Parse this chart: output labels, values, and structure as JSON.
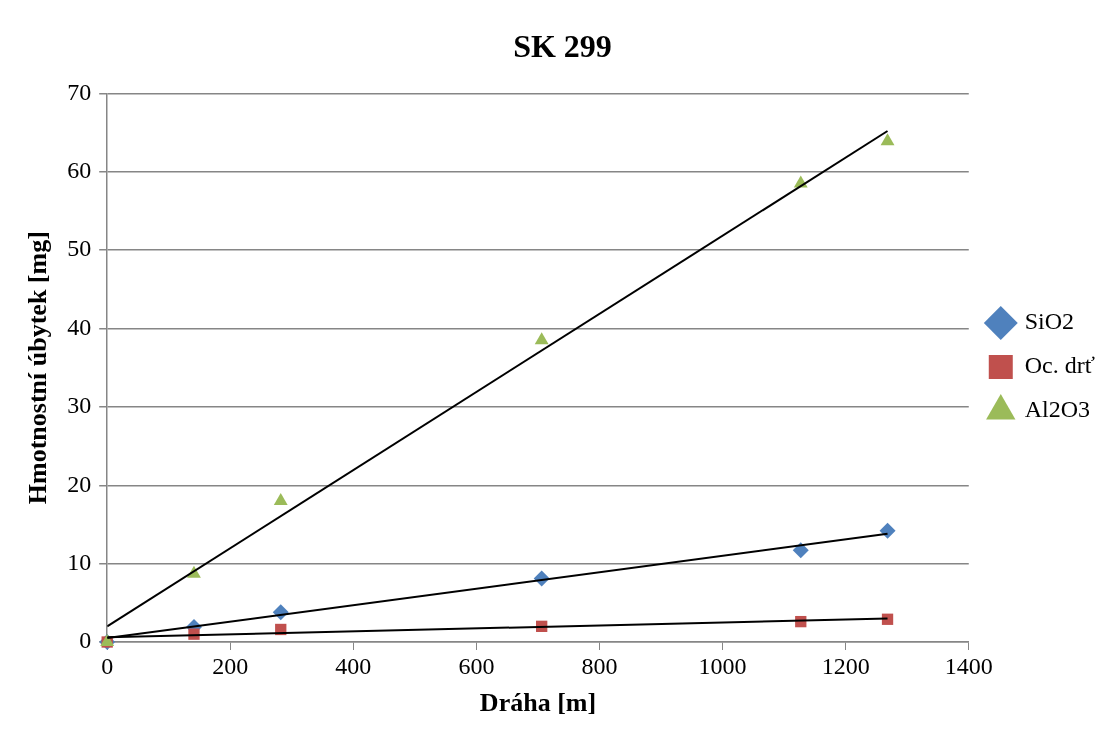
{
  "chart_data": {
    "type": "scatter",
    "title": "SK 299",
    "xlabel": "Dráha [m]",
    "ylabel": "Hmotnostní úbytek [mg]",
    "xlim": [
      0,
      1400
    ],
    "xticks": [
      0,
      200,
      400,
      600,
      800,
      1000,
      1200,
      1400
    ],
    "ylim": [
      0,
      70
    ],
    "yticks": [
      0,
      10,
      20,
      30,
      40,
      50,
      60,
      70
    ],
    "grid": "y",
    "legend": "right",
    "series": [
      {
        "name": "SiO2",
        "color": "#4f81bd",
        "marker": "diamond",
        "x": [
          0,
          141,
          282,
          706,
          1127,
          1268
        ],
        "values": [
          0,
          1.9,
          3.8,
          8.1,
          11.7,
          14.2
        ]
      },
      {
        "name": "Oc. drť",
        "color": "#c0504d",
        "marker": "square",
        "x": [
          0,
          141,
          282,
          706,
          1127,
          1268
        ],
        "values": [
          0,
          1.0,
          1.6,
          2.0,
          2.6,
          2.9
        ]
      },
      {
        "name": "Al2O3",
        "color": "#9bbb59",
        "marker": "triangle",
        "x": [
          0,
          141,
          282,
          706,
          1127,
          1268
        ],
        "values": [
          0,
          8.7,
          18.0,
          38.5,
          58.5,
          63.9
        ]
      },
      {
        "type": "line",
        "color": "#000000",
        "marker": "none",
        "x": [
          0,
          1268
        ],
        "values": [
          0.5,
          13.8
        ]
      },
      {
        "type": "line",
        "color": "#000000",
        "marker": "none",
        "x": [
          0,
          1268
        ],
        "values": [
          0.6,
          3.0
        ]
      },
      {
        "type": "line",
        "color": "#000000",
        "marker": "none",
        "x": [
          0,
          1268
        ],
        "values": [
          2.0,
          65.2
        ]
      }
    ]
  }
}
